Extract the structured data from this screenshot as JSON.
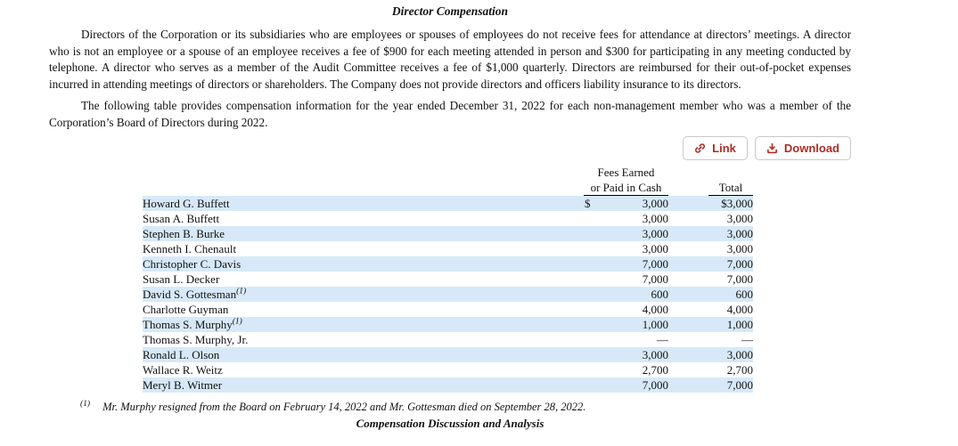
{
  "document": {
    "title": "Director Compensation",
    "paragraph1": "Directors of the Corporation or its subsidiaries who are employees or spouses of employees do not receive fees for attendance at directors’ meetings. A director who is not an employee or a spouse of an employee receives a fee of $900 for each meeting attended in person and $300 for participating in any meeting conducted by telephone. A director who serves as a member of the Audit Committee receives a fee of $1,000 quarterly. Directors are reimbursed for their out-of-pocket expenses incurred in attending meetings of directors or shareholders. The Company does not provide directors and officers liability insurance to its directors.",
    "paragraph2": "The following table provides compensation information for the year ended December 31, 2022 for each non-management member who was a member of the Corporation’s Board of Directors during 2022.",
    "footnote_marker": "(1)",
    "footnote_text": "Mr. Murphy resigned from the Board on February 14, 2022 and Mr. Gottesman died on September 28, 2022.",
    "next_section_title": "Compensation Discussion and Analysis"
  },
  "toolbar": {
    "buttons": [
      {
        "label": "Link",
        "icon": "link-icon"
      },
      {
        "label": "Download",
        "icon": "download-icon"
      }
    ],
    "accent_color": "#ad2d24"
  },
  "comp_table": {
    "stripe_color": "#d7e9f8",
    "headers": {
      "fees_line1": "Fees Earned",
      "fees_line2": "or Paid in Cash",
      "total": "Total"
    },
    "rows": [
      {
        "name": "Howard G. Buffett",
        "ref": "",
        "currency": "$",
        "fees": "3,000",
        "total": "$3,000"
      },
      {
        "name": "Susan A. Buffett",
        "ref": "",
        "currency": "",
        "fees": "3,000",
        "total": "3,000"
      },
      {
        "name": "Stephen B. Burke",
        "ref": "",
        "currency": "",
        "fees": "3,000",
        "total": "3,000"
      },
      {
        "name": "Kenneth I. Chenault",
        "ref": "",
        "currency": "",
        "fees": "3,000",
        "total": "3,000"
      },
      {
        "name": "Christopher C. Davis",
        "ref": "",
        "currency": "",
        "fees": "7,000",
        "total": "7,000"
      },
      {
        "name": "Susan L. Decker",
        "ref": "",
        "currency": "",
        "fees": "7,000",
        "total": "7,000"
      },
      {
        "name": "David S. Gottesman",
        "ref": "(1)",
        "currency": "",
        "fees": "600",
        "total": "600"
      },
      {
        "name": "Charlotte Guyman",
        "ref": "",
        "currency": "",
        "fees": "4,000",
        "total": "4,000"
      },
      {
        "name": "Thomas S. Murphy",
        "ref": "(1)",
        "currency": "",
        "fees": "1,000",
        "total": "1,000"
      },
      {
        "name": "Thomas S. Murphy, Jr.",
        "ref": "",
        "currency": "",
        "fees": "—",
        "total": "—"
      },
      {
        "name": "Ronald L. Olson",
        "ref": "",
        "currency": "",
        "fees": "3,000",
        "total": "3,000"
      },
      {
        "name": "Wallace R. Weitz",
        "ref": "",
        "currency": "",
        "fees": "2,700",
        "total": "2,700"
      },
      {
        "name": "Meryl B. Witmer",
        "ref": "",
        "currency": "",
        "fees": "7,000",
        "total": "7,000"
      }
    ]
  }
}
